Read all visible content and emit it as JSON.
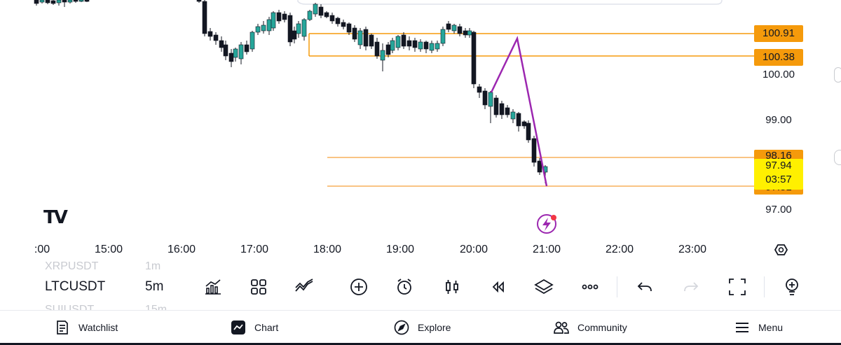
{
  "chart": {
    "price_axis_labels": [
      "100.00",
      "99.00",
      "97.00"
    ],
    "level_tags": [
      "100.91",
      "100.38",
      "98.16",
      "97.51"
    ],
    "current_price": "97.94",
    "countdown": "03:57",
    "time_labels": [
      ":00",
      "15:00",
      "16:00",
      "17:00",
      "18:00",
      "19:00",
      "20:00",
      "21:00",
      "22:00",
      "23:00"
    ],
    "logo_text": "TV",
    "colors": {
      "up": "#26a69a",
      "down": "#131722",
      "level": "#f59a0b",
      "drawing": "#9c27b0",
      "current": "#fff000"
    }
  },
  "toolbar": {
    "symbol": "LTCUSDT",
    "interval": "5m",
    "symbol_prev": "XRPUSDT",
    "symbol_next": "SUIUSDT",
    "interval_prev": "1m",
    "interval_next": "15m",
    "icons": [
      "indicators-icon",
      "templates-icon",
      "compare-icon",
      "add-icon",
      "alert-icon",
      "candles-icon",
      "replay-icon",
      "layers-icon",
      "more-icon",
      "undo-icon",
      "redo-icon",
      "fullscreen-icon",
      "ideas-icon"
    ]
  },
  "bottom_nav": {
    "watchlist": "Watchlist",
    "chart": "Chart",
    "explore": "Explore",
    "community": "Community",
    "menu": "Menu"
  }
}
